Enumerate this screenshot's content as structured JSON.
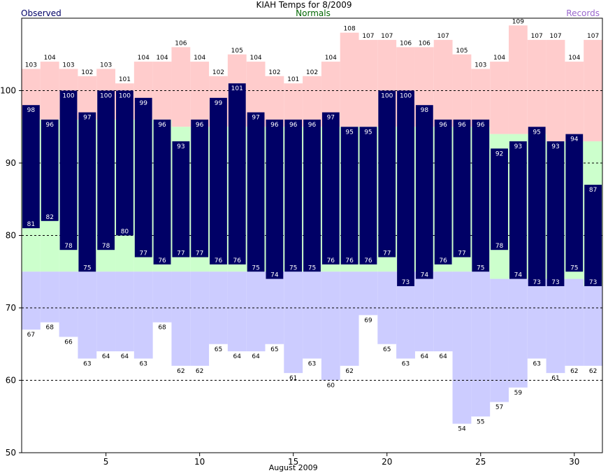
{
  "chart_data": {
    "type": "bar",
    "title": "KIAH Temps for 8/2009",
    "xlabel": "August 2009",
    "ylabel": "",
    "legend": [
      {
        "name": "Observed",
        "color": "#000066"
      },
      {
        "name": "Normals",
        "color": "#006600"
      },
      {
        "name": "Records",
        "color": "#9966cc"
      }
    ],
    "days": [
      1,
      2,
      3,
      4,
      5,
      6,
      7,
      8,
      9,
      10,
      11,
      12,
      13,
      14,
      15,
      16,
      17,
      18,
      19,
      20,
      21,
      22,
      23,
      24,
      25,
      26,
      27,
      28,
      29,
      30,
      31
    ],
    "x_ticks": [
      5,
      10,
      15,
      20,
      25,
      30
    ],
    "ylim": [
      50,
      110
    ],
    "y_ticks": [
      50,
      60,
      70,
      80,
      90,
      100
    ],
    "gridlines": [
      60,
      70,
      80,
      90,
      100
    ],
    "series": [
      {
        "name": "Observed High",
        "values": [
          98,
          96,
          100,
          97,
          100,
          100,
          99,
          96,
          93,
          96,
          99,
          101,
          97,
          96,
          96,
          96,
          97,
          95,
          95,
          100,
          100,
          98,
          96,
          96,
          96,
          92,
          93,
          95,
          93,
          94,
          87
        ]
      },
      {
        "name": "Observed Low",
        "values": [
          81,
          82,
          78,
          75,
          78,
          80,
          77,
          76,
          77,
          77,
          76,
          76,
          75,
          74,
          75,
          75,
          76,
          76,
          76,
          77,
          73,
          74,
          76,
          77,
          75,
          78,
          74,
          73,
          73,
          75,
          73
        ]
      },
      {
        "name": "Record High",
        "values": [
          103,
          104,
          103,
          102,
          103,
          101,
          104,
          104,
          106,
          104,
          102,
          105,
          104,
          102,
          101,
          102,
          104,
          108,
          107,
          107,
          106,
          106,
          107,
          105,
          103,
          104,
          109,
          107,
          107,
          104,
          107
        ]
      },
      {
        "name": "Record Low",
        "values": [
          67,
          68,
          66,
          63,
          64,
          64,
          63,
          68,
          62,
          62,
          65,
          64,
          64,
          65,
          61,
          63,
          60,
          62,
          69,
          65,
          63,
          64,
          64,
          54,
          55,
          57,
          59,
          63,
          61,
          62,
          62
        ]
      },
      {
        "name": "Normal High",
        "values": [
          96,
          96,
          96,
          96,
          96,
          96,
          96,
          96,
          95,
          95,
          95,
          95,
          95,
          95,
          95,
          95,
          95,
          95,
          95,
          95,
          95,
          95,
          95,
          95,
          95,
          94,
          94,
          94,
          93,
          93,
          93
        ]
      },
      {
        "name": "Normal Low",
        "values": [
          75,
          75,
          75,
          75,
          75,
          75,
          75,
          75,
          75,
          75,
          75,
          75,
          75,
          75,
          75,
          75,
          75,
          75,
          75,
          75,
          75,
          75,
          75,
          75,
          75,
          74,
          74,
          74,
          74,
          74,
          73
        ]
      }
    ],
    "colors": {
      "observed_bar": "#000066",
      "record_high_area": "#ffcccc",
      "record_low_area": "#ccccff",
      "normal_area": "#ccffcc",
      "observed_label": "#000066",
      "normals_label": "#006600",
      "records_label": "#9966cc"
    }
  }
}
